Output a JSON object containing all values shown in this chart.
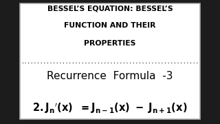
{
  "bg_color": "#ffffff",
  "border_color": "#aaaaaa",
  "outer_bg": "#1c1c1c",
  "title_line1": "BESSEL’S EQUATION: BESSEL’S",
  "title_line2": "FUNCTION AND THEIR",
  "title_line3": "PROPERTIES",
  "recurrence_label": "Recurrence  Formula  -3",
  "title_fontsize": 7.8,
  "recurrence_fontsize": 11,
  "formula_fontsize": 10.5
}
